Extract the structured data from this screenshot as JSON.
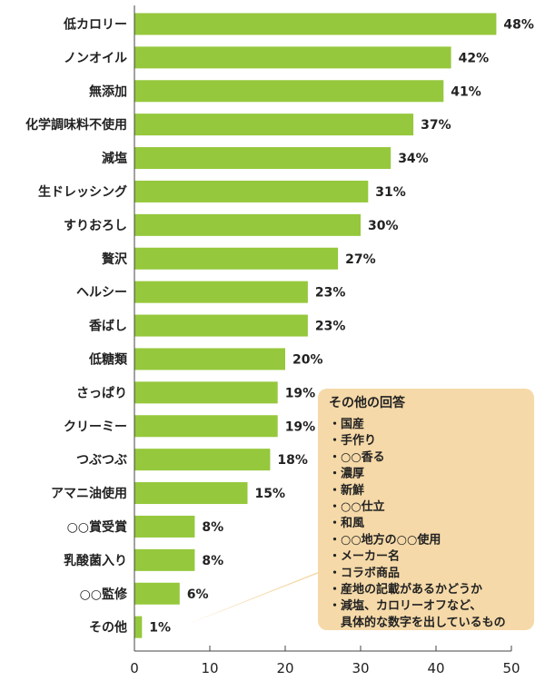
{
  "chart_data": {
    "type": "bar",
    "orientation": "horizontal",
    "categories": [
      "低カロリー",
      "ノンオイル",
      "無添加",
      "化学調味料不使用",
      "減塩",
      "生ドレッシング",
      "すりおろし",
      "贅沢",
      "ヘルシー",
      "香ばし",
      "低糖類",
      "さっぱり",
      "クリーミー",
      "つぶつぶ",
      "アマニ油使用",
      "○○賞受賞",
      "乳酸菌入り",
      "○○監修",
      "その他"
    ],
    "values": [
      48,
      42,
      41,
      37,
      34,
      31,
      30,
      27,
      23,
      23,
      20,
      19,
      19,
      18,
      15,
      8,
      8,
      6,
      1
    ],
    "value_labels": [
      "48%",
      "42%",
      "41%",
      "37%",
      "34%",
      "31%",
      "30%",
      "27%",
      "23%",
      "23%",
      "20%",
      "19%",
      "19%",
      "18%",
      "15%",
      "8%",
      "8%",
      "6%",
      "1%"
    ],
    "x_ticks": [
      "0",
      "10",
      "20",
      "30",
      "40",
      "50"
    ],
    "xlim": [
      0,
      50
    ],
    "grid": false,
    "bar_color": "#95c83c",
    "annotation": {
      "title": "その他の回答",
      "items": [
        "・国産",
        "・手作り",
        "・○○香る",
        "・濃厚",
        "・新鮮",
        "・○○仕立",
        "・和風",
        "・○○地方の○○使用",
        "・メーカー名",
        "・コラボ商品",
        "・産地の記載があるかどうか",
        "・減塩、カロリーオフなど、",
        "　具体的な数字を出しているもの"
      ],
      "color": "#f5d9a8"
    }
  }
}
